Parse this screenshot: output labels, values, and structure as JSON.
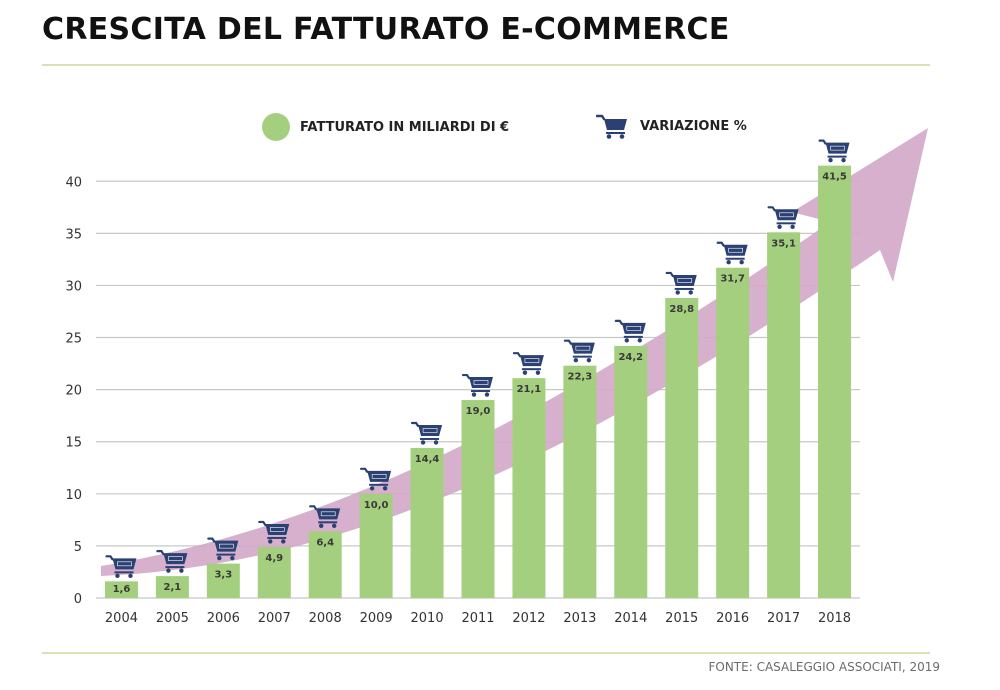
{
  "title": "CRESCITA DEL FATTURATO E-COMMERCE",
  "source": "FONTE: CASALEGGIO ASSOCIATI, 2019",
  "legend": {
    "sales_label": "FATTURATO IN MILIARDI DI €",
    "variation_label": "VARIAZIONE %"
  },
  "colors": {
    "bar": "#a4cf7f",
    "cart": "#2b4173",
    "arrow": "#d2a7c6",
    "grid": "#c8c8c8",
    "rule": "#d5e3b5"
  },
  "chart_data": {
    "type": "bar",
    "title": "CRESCITA DEL FATTURATO E-COMMERCE",
    "categories": [
      "2004",
      "2005",
      "2006",
      "2007",
      "2008",
      "2009",
      "2010",
      "2011",
      "2012",
      "2013",
      "2014",
      "2015",
      "2016",
      "2017",
      "2018"
    ],
    "series": [
      {
        "name": "FATTURATO IN MILIARDI DI €",
        "values": [
          1.6,
          2.1,
          3.3,
          4.9,
          6.4,
          10.0,
          14.4,
          19.0,
          21.1,
          22.3,
          24.2,
          28.8,
          31.7,
          35.1,
          41.5
        ],
        "labels": [
          "1,6",
          "2,1",
          "3,3",
          "4,9",
          "6,4",
          "10,0",
          "14,4",
          "19,0",
          "21,1",
          "22,3",
          "24,2",
          "28,8",
          "31,7",
          "35,1",
          "41,5"
        ]
      }
    ],
    "yticks": [
      0,
      5,
      10,
      15,
      20,
      25,
      30,
      35,
      40
    ],
    "ylim": [
      0,
      43
    ],
    "grid": true,
    "legend_position": "top",
    "trend_arrow": true
  }
}
